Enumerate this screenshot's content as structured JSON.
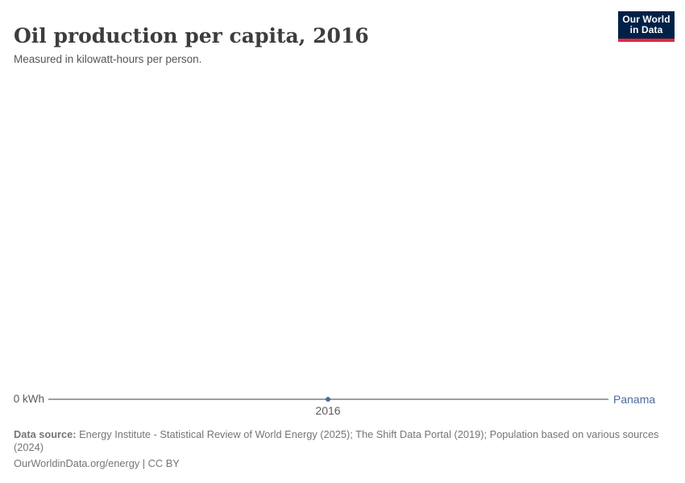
{
  "header": {
    "title": "Oil production per capita, 2016",
    "subtitle": "Measured in kilowatt-hours per person.",
    "logo": {
      "line1": "Our World",
      "line2": "in Data"
    }
  },
  "chart": {
    "y_axis_label": "0 kWh",
    "x_tick_label": "2016",
    "entity_label": "Panama"
  },
  "footer": {
    "datasource_label": "Data source:",
    "datasource_line1": "Energy Institute - Statistical Review of World Energy (2025); The Shift Data Portal (2019); Population based on various sources",
    "datasource_line2": "(2024)",
    "license_line": "OurWorldinData.org/energy | CC BY"
  },
  "colors": {
    "entity": "#4c6a9c",
    "axis_line": "#9e9e9e",
    "logo_background": "#002147",
    "logo_stripe": "#e5273e",
    "title_text": "#3d3d3d",
    "footer_text": "#757575"
  },
  "chart_data": {
    "type": "line",
    "title": "Oil production per capita, 2016",
    "subtitle": "Measured in kilowatt-hours per person.",
    "unit": "kWh",
    "x": [
      2016
    ],
    "series": [
      {
        "name": "Panama",
        "values": [
          0
        ],
        "color": "#4c6a9c"
      }
    ],
    "xticks": [
      "2016"
    ],
    "yticks": [
      "0 kWh"
    ],
    "ylim": [
      0,
      0
    ],
    "grid": false,
    "legend_position": "end-of-line-label-right"
  }
}
